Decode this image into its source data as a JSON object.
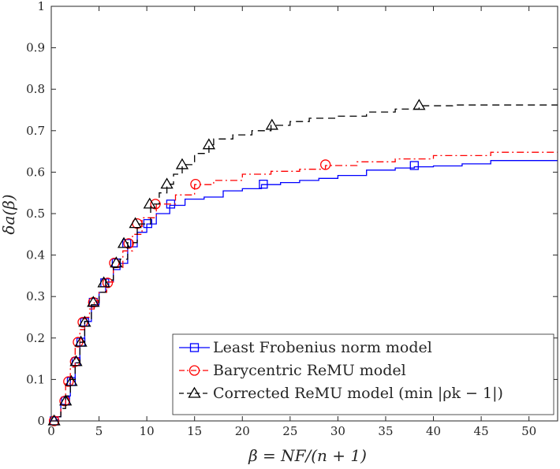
{
  "chart_data": {
    "type": "line",
    "title": "",
    "xlabel": "β = NF/(n + 1)",
    "ylabel": "δa(β)",
    "xlim": [
      0,
      53
    ],
    "ylim": [
      0,
      1
    ],
    "xticks": [
      "0",
      "5",
      "10",
      "15",
      "20",
      "25",
      "30",
      "35",
      "40",
      "45",
      "50"
    ],
    "yticks": [
      "0",
      "0.1",
      "0.2",
      "0.3",
      "0.4",
      "0.5",
      "0.6",
      "0.7",
      "0.8",
      "0.9",
      "1"
    ],
    "grid": false,
    "legend_position": "bottom-right",
    "series": [
      {
        "name": "Least Frobenius norm model",
        "color": "#0000ff",
        "line_style": "solid",
        "marker": "square",
        "points": [
          [
            0,
            0
          ],
          [
            0.3,
            0
          ],
          [
            0.5,
            0.01
          ],
          [
            1,
            0.04
          ],
          [
            1.5,
            0.06
          ],
          [
            2,
            0.1
          ],
          [
            2.5,
            0.14
          ],
          [
            3,
            0.19
          ],
          [
            3.5,
            0.24
          ],
          [
            4.2,
            0.28
          ],
          [
            5,
            0.31
          ],
          [
            5.7,
            0.335
          ],
          [
            6.5,
            0.365
          ],
          [
            7.2,
            0.38
          ],
          [
            8,
            0.42
          ],
          [
            9,
            0.455
          ],
          [
            10,
            0.475
          ],
          [
            11,
            0.5
          ],
          [
            12.4,
            0.52
          ],
          [
            14,
            0.535
          ],
          [
            16,
            0.54
          ],
          [
            18,
            0.555
          ],
          [
            20,
            0.56
          ],
          [
            22,
            0.57
          ],
          [
            24,
            0.575
          ],
          [
            26,
            0.58
          ],
          [
            28,
            0.585
          ],
          [
            30,
            0.592
          ],
          [
            33,
            0.605
          ],
          [
            36,
            0.61
          ],
          [
            38,
            0.613
          ],
          [
            40,
            0.615
          ],
          [
            43,
            0.62
          ],
          [
            46,
            0.628
          ],
          [
            53,
            0.628
          ]
        ],
        "markers": [
          [
            0.3,
            0
          ],
          [
            1.5,
            0.048
          ],
          [
            2.1,
            0.095
          ],
          [
            2.6,
            0.143
          ],
          [
            3.1,
            0.19
          ],
          [
            3.5,
            0.238
          ],
          [
            4.4,
            0.286
          ],
          [
            5.6,
            0.333
          ],
          [
            6.8,
            0.381
          ],
          [
            7.9,
            0.428
          ],
          [
            10.1,
            0.476
          ],
          [
            12.5,
            0.523
          ],
          [
            22.2,
            0.571
          ],
          [
            38,
            0.616
          ]
        ]
      },
      {
        "name": "Barycentric ReMU model",
        "color": "#ff0000",
        "line_style": "dashdot",
        "marker": "circle",
        "points": [
          [
            0,
            0
          ],
          [
            0.3,
            0
          ],
          [
            0.6,
            0.01
          ],
          [
            1,
            0.04
          ],
          [
            1.5,
            0.09
          ],
          [
            2,
            0.13
          ],
          [
            2.5,
            0.18
          ],
          [
            3,
            0.22
          ],
          [
            3.5,
            0.25
          ],
          [
            4,
            0.27
          ],
          [
            4.5,
            0.29
          ],
          [
            5,
            0.31
          ],
          [
            5.8,
            0.335
          ],
          [
            6.5,
            0.37
          ],
          [
            7.5,
            0.41
          ],
          [
            8.5,
            0.45
          ],
          [
            9.5,
            0.49
          ],
          [
            11,
            0.523
          ],
          [
            13,
            0.545
          ],
          [
            15,
            0.57
          ],
          [
            17,
            0.58
          ],
          [
            20,
            0.595
          ],
          [
            23,
            0.602
          ],
          [
            26,
            0.607
          ],
          [
            28.7,
            0.616
          ],
          [
            32,
            0.625
          ],
          [
            36,
            0.632
          ],
          [
            40,
            0.64
          ],
          [
            46,
            0.648
          ],
          [
            53,
            0.648
          ]
        ],
        "markers": [
          [
            0.3,
            0
          ],
          [
            1.4,
            0.048
          ],
          [
            1.8,
            0.095
          ],
          [
            2.5,
            0.143
          ],
          [
            2.8,
            0.19
          ],
          [
            3.3,
            0.238
          ],
          [
            4.4,
            0.286
          ],
          [
            5.9,
            0.333
          ],
          [
            6.6,
            0.381
          ],
          [
            8.1,
            0.428
          ],
          [
            9,
            0.476
          ],
          [
            10.9,
            0.523
          ],
          [
            15.1,
            0.571
          ],
          [
            28.7,
            0.618
          ]
        ]
      },
      {
        "name": "Corrected ReMU model (min |ρk − 1|)",
        "color": "#000000",
        "line_style": "dashed",
        "marker": "triangle",
        "points": [
          [
            0,
            0
          ],
          [
            0.3,
            0
          ],
          [
            0.6,
            0.01
          ],
          [
            1,
            0.03
          ],
          [
            1.5,
            0.06
          ],
          [
            2,
            0.1
          ],
          [
            2.5,
            0.14
          ],
          [
            3,
            0.19
          ],
          [
            3.5,
            0.24
          ],
          [
            4.2,
            0.28
          ],
          [
            5,
            0.31
          ],
          [
            5.7,
            0.34
          ],
          [
            6.5,
            0.37
          ],
          [
            7.2,
            0.39
          ],
          [
            8,
            0.43
          ],
          [
            9,
            0.475
          ],
          [
            10.4,
            0.523
          ],
          [
            11.3,
            0.55
          ],
          [
            12.1,
            0.571
          ],
          [
            12.8,
            0.595
          ],
          [
            13.7,
            0.618
          ],
          [
            15,
            0.645
          ],
          [
            16.5,
            0.666
          ],
          [
            17,
            0.68
          ],
          [
            19,
            0.69
          ],
          [
            21,
            0.7
          ],
          [
            23,
            0.713
          ],
          [
            25,
            0.722
          ],
          [
            27,
            0.73
          ],
          [
            30,
            0.735
          ],
          [
            33,
            0.745
          ],
          [
            36,
            0.752
          ],
          [
            38.5,
            0.76
          ],
          [
            42,
            0.762
          ],
          [
            46,
            0.762
          ],
          [
            53,
            0.762
          ]
        ],
        "markers": [
          [
            0.3,
            0
          ],
          [
            1.5,
            0.048
          ],
          [
            2.1,
            0.095
          ],
          [
            2.6,
            0.143
          ],
          [
            3.1,
            0.19
          ],
          [
            3.5,
            0.238
          ],
          [
            4.4,
            0.286
          ],
          [
            5.5,
            0.333
          ],
          [
            6.8,
            0.381
          ],
          [
            7.6,
            0.428
          ],
          [
            8.8,
            0.476
          ],
          [
            10.3,
            0.523
          ],
          [
            12.1,
            0.571
          ],
          [
            13.7,
            0.618
          ],
          [
            16.5,
            0.666
          ],
          [
            23.1,
            0.713
          ],
          [
            38.5,
            0.761
          ]
        ]
      }
    ]
  }
}
